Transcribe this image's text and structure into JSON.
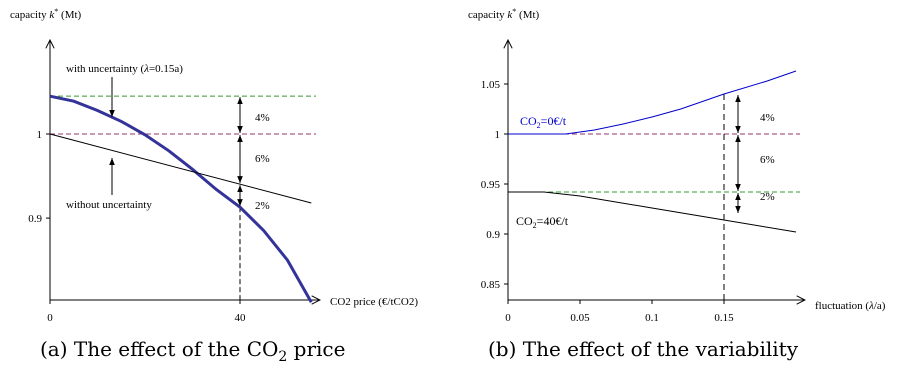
{
  "chart_data": [
    {
      "type": "line",
      "ylabel": "capacity k* (Mt)",
      "xlabel": "CO2 price (€/tCO2)",
      "x_ticks": [
        "0",
        "40"
      ],
      "x_tick_values": [
        0,
        40
      ],
      "y_ticks": [
        "1",
        "0.9"
      ],
      "y_tick_values": [
        1,
        0.9
      ],
      "xlim": [
        0,
        58
      ],
      "ylim": [
        0.8,
        1.12
      ],
      "series": [
        {
          "name": "with uncertainty (λ=0.15a)",
          "color": "#333399",
          "x": [
            0,
            5,
            10,
            15,
            20,
            25,
            30,
            35,
            40,
            45,
            50,
            55
          ],
          "y": [
            1.045,
            1.039,
            1.028,
            1.015,
            0.999,
            0.98,
            0.958,
            0.934,
            0.913,
            0.885,
            0.85,
            0.8
          ]
        },
        {
          "name": "without uncertainty",
          "color": "#000000",
          "x": [
            0,
            55
          ],
          "y": [
            1.0,
            0.918
          ]
        }
      ],
      "reference_lines": [
        {
          "y": 1.045,
          "color": "#339933"
        },
        {
          "y": 1.0,
          "color": "#993366"
        }
      ],
      "marker_x": 40,
      "annotations": [
        "with uncertainty (λ=0.15a)",
        "without uncertainty",
        "4%",
        "6%",
        "2%"
      ]
    },
    {
      "type": "line",
      "ylabel": "capacity k* (Mt)",
      "xlabel": "fluctuation (λ/a)",
      "x_ticks": [
        "0",
        "0.05",
        "0.1",
        "0.15"
      ],
      "x_tick_values": [
        0,
        0.05,
        0.1,
        0.15
      ],
      "y_ticks": [
        "1.05",
        "1",
        "0.95",
        "0.9",
        "0.85"
      ],
      "y_tick_values": [
        1.05,
        1.0,
        0.95,
        0.9,
        0.85
      ],
      "xlim": [
        0,
        0.2
      ],
      "ylim": [
        0.8,
        1.1
      ],
      "series": [
        {
          "name": "CO₂=0€/t",
          "color": "#0000cc",
          "x": [
            0,
            0.04,
            0.06,
            0.08,
            0.1,
            0.12,
            0.15,
            0.18,
            0.2
          ],
          "y": [
            1.0,
            1.0,
            1.004,
            1.01,
            1.017,
            1.025,
            1.04,
            1.053,
            1.063
          ]
        },
        {
          "name": "CO₂=40€/t",
          "color": "#000000",
          "x": [
            0,
            0.025,
            0.05,
            0.1,
            0.15,
            0.2
          ],
          "y": [
            0.942,
            0.942,
            0.938,
            0.926,
            0.914,
            0.902
          ]
        }
      ],
      "reference_lines": [
        {
          "y": 1.0,
          "color": "#993366"
        },
        {
          "y": 0.942,
          "color": "#339933"
        }
      ],
      "marker_x": 0.15,
      "annotations": [
        "4%",
        "6%",
        "2%"
      ]
    }
  ],
  "captions": {
    "a_prefix": "(a) The effect of the CO",
    "a_sub": "2",
    "a_suffix": " price",
    "b": "(b) The effect of the variability"
  },
  "labels": {
    "a_ylabel_pre": "capacity ",
    "a_ylabel_k": "k",
    "a_ylabel_sup": "*",
    "a_ylabel_post": " (Mt)",
    "b_ylabel_pre": "capacity ",
    "b_ylabel_k": "k",
    "b_ylabel_sup": "*",
    "b_ylabel_post": " (Mt)",
    "a_with_pre": "with uncertainty (",
    "a_with_lambda": "λ",
    "a_with_post": "=0.15a)",
    "a_without": "without uncertainty",
    "a_xlabel": "CO2 price (€/tCO2)",
    "b_xlabel_pre": "fluctuation (",
    "b_xlabel_lambda": "λ",
    "b_xlabel_post": "/a)",
    "b_co2_0_pre": "CO",
    "b_co2_0_sub": "2",
    "b_co2_0_post": "=0€/t",
    "b_co2_40_pre": "CO",
    "b_co2_40_sub": "2",
    "b_co2_40_post": "=40€/t",
    "a_pct_top": "4%",
    "a_pct_mid": "6%",
    "a_pct_bot": "2%",
    "b_pct_top": "4%",
    "b_pct_mid": "6%",
    "b_pct_bot": "2%"
  }
}
